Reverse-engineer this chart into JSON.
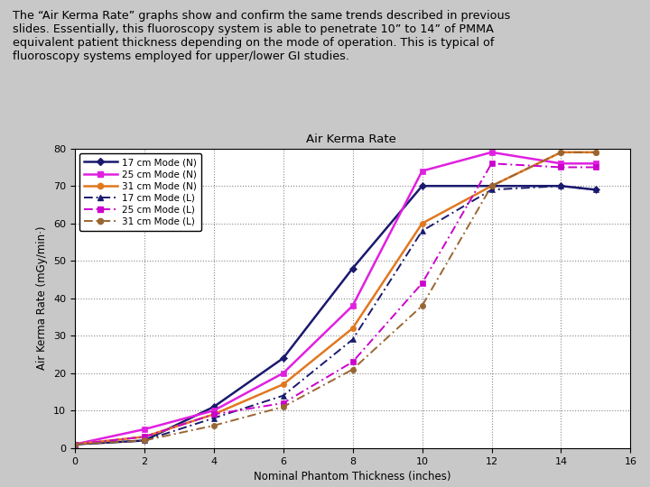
{
  "title": "Air Kerma Rate",
  "xlabel": "Nominal Phantom Thickness (inches)",
  "ylabel": "Air Kerma Rate (mGy/min·)",
  "xlim": [
    0,
    16
  ],
  "ylim": [
    0,
    80
  ],
  "xticks": [
    0,
    2,
    4,
    6,
    8,
    10,
    12,
    14,
    16
  ],
  "yticks": [
    0,
    10,
    20,
    30,
    40,
    50,
    60,
    70,
    80
  ],
  "background_color": "#c8c8c8",
  "plot_bg_color": "#ffffff",
  "header_text": "The “Air Kerma Rate” graphs show and confirm the same trends described in previous\nslides. Essentially, this fluoroscopy system is able to penetrate 10” to 14” of PMMA\nequivalent patient thickness depending on the mode of operation. This is typical of\nfluoroscopy systems employed for upper/lower GI studies.",
  "series": [
    {
      "label": "17 cm Mode (N)",
      "color": "#1a1a6e",
      "linestyle": "-",
      "marker": "D",
      "dashes": [],
      "x": [
        0,
        2,
        4,
        6,
        8,
        10,
        12,
        14,
        15
      ],
      "y": [
        1,
        2,
        11,
        24,
        48,
        70,
        70,
        70,
        69
      ]
    },
    {
      "label": "25 cm Mode (N)",
      "color": "#e020e0",
      "linestyle": "-",
      "marker": "s",
      "dashes": [],
      "x": [
        0,
        2,
        4,
        6,
        8,
        10,
        12,
        14,
        15
      ],
      "y": [
        1,
        5,
        10,
        20,
        38,
        74,
        79,
        76,
        76
      ]
    },
    {
      "label": "31 cm Mode (N)",
      "color": "#e07820",
      "linestyle": "-",
      "marker": "o",
      "dashes": [],
      "x": [
        0,
        2,
        4,
        6,
        8,
        10,
        12,
        14,
        15
      ],
      "y": [
        1,
        3,
        9,
        17,
        32,
        60,
        70,
        79,
        79
      ]
    },
    {
      "label": "17 cm Mode (L)",
      "color": "#1a1a6e",
      "linestyle": "--",
      "marker": "^",
      "dashes": [
        5,
        2,
        1,
        2
      ],
      "x": [
        0,
        2,
        4,
        6,
        8,
        10,
        12,
        14,
        15
      ],
      "y": [
        1,
        2,
        8,
        14,
        29,
        58,
        69,
        70,
        69
      ]
    },
    {
      "label": "25 cm Mode (L)",
      "color": "#cc00cc",
      "linestyle": "--",
      "marker": "s",
      "dashes": [
        5,
        2,
        1,
        2
      ],
      "x": [
        0,
        2,
        4,
        6,
        8,
        10,
        12,
        14,
        15
      ],
      "y": [
        1,
        3,
        9,
        12,
        23,
        44,
        76,
        75,
        75
      ]
    },
    {
      "label": "31 cm Mode (L)",
      "color": "#996633",
      "linestyle": "--",
      "marker": "o",
      "dashes": [
        5,
        2,
        1,
        2
      ],
      "x": [
        0,
        2,
        4,
        6,
        8,
        10,
        12,
        14,
        15
      ],
      "y": [
        1,
        2,
        6,
        11,
        21,
        38,
        70,
        79,
        79
      ]
    }
  ]
}
